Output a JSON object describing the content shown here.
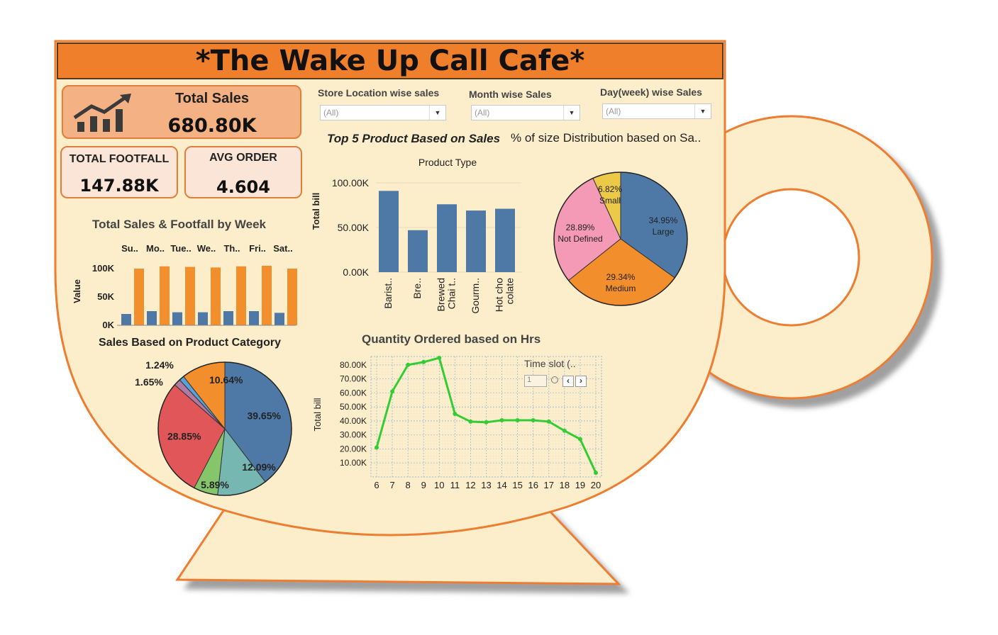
{
  "app_title": "*The Wake Up Call Cafe*",
  "kpis": {
    "total_sales": {
      "label": "Total Sales",
      "value": "680.80K"
    },
    "total_footfall": {
      "label": "TOTAL FOOTFALL",
      "value": "147.88K"
    },
    "avg_order": {
      "label": "AVG ORDER",
      "value": "4.604"
    }
  },
  "filters": [
    {
      "label": "Store Location wise sales",
      "value": "(All)"
    },
    {
      "label": "Month wise Sales",
      "value": "(All)"
    },
    {
      "label": "Day(week) wise Sales",
      "value": "(All)"
    }
  ],
  "icons": {
    "kpi_icon": "bar-chart-trend-icon",
    "dropdown": "chevron-down-icon"
  },
  "colors": {
    "orange": "#f28e2b",
    "blue": "#4e79a7",
    "title_bg": "#f07f2c",
    "cream": "#fdeecb",
    "line_green": "#33cc33"
  },
  "chart_data": [
    {
      "id": "weekly",
      "type": "bar",
      "title": "Total Sales & Footfall by Week",
      "ylabel": "Value",
      "categories": [
        "Su..",
        "Mo..",
        "Tue..",
        "We..",
        "Th..",
        "Fri..",
        "Sat.."
      ],
      "yticks": [
        "100K",
        "50K",
        "0K"
      ],
      "ylim": [
        0,
        120000
      ],
      "series": [
        {
          "values": [
            20000,
            25000,
            23000,
            23000,
            25000,
            25000,
            22000
          ],
          "color": "#4e79a7"
        },
        {
          "values": [
            100000,
            104000,
            103000,
            102000,
            104000,
            105000,
            100000
          ],
          "color": "#f28e2b"
        }
      ]
    },
    {
      "id": "category",
      "type": "pie",
      "title": "Sales Based on Product Category",
      "slices": [
        {
          "value": 39.65,
          "label": "39.65%",
          "color": "#4e79a7"
        },
        {
          "value": 12.09,
          "label": "12.09%",
          "color": "#76b7b2"
        },
        {
          "value": 5.89,
          "label": "5.89%",
          "color": "#86c66b"
        },
        {
          "value": 28.85,
          "label": "28.85%",
          "color": "#e15759"
        },
        {
          "value": 1.65,
          "label": "1.65%",
          "color": "#b07aa1"
        },
        {
          "value": 1.24,
          "label": "1.24%",
          "color": "#59a1d8"
        },
        {
          "value": 10.64,
          "label": "10.64%",
          "color": "#f28e2b"
        }
      ]
    },
    {
      "id": "top5",
      "type": "bar",
      "title": "Top 5 Product Based on Sales",
      "header": "Product Type",
      "ylabel": "Total bill",
      "categories": [
        "Barist..",
        "Bre..",
        "Brewed Chai t..",
        "Gourm..",
        "Hot chocolate"
      ],
      "tick_lines": [
        [
          "Barist.."
        ],
        [
          "Bre.."
        ],
        [
          "Brewed",
          "Chai t.."
        ],
        [
          "Gourm.."
        ],
        [
          "Hot cho",
          "colate"
        ]
      ],
      "values": [
        91000,
        47000,
        76000,
        69000,
        71000
      ],
      "yticks": [
        "100.00K",
        "50.00K",
        "0.00K"
      ],
      "ylim": [
        0,
        100000
      ],
      "color": "#4e79a7"
    },
    {
      "id": "size",
      "type": "pie",
      "title": "% of size Distribution based on Sa..",
      "slices": [
        {
          "value": 34.95,
          "pct": "34.95%",
          "name": "Large",
          "color": "#4e79a7"
        },
        {
          "value": 29.34,
          "pct": "29.34%",
          "name": "Medium",
          "color": "#f28e2b"
        },
        {
          "value": 28.89,
          "pct": "28.89%",
          "name": "Not Defined",
          "color": "#f59ab6"
        },
        {
          "value": 6.82,
          "pct": "6.82%",
          "name": "Small",
          "color": "#edc948"
        }
      ]
    },
    {
      "id": "hourly",
      "type": "line",
      "title": "Quantity Ordered based on Hrs",
      "ylabel": "Total bill",
      "x": [
        6,
        7,
        8,
        9,
        10,
        11,
        12,
        13,
        14,
        15,
        16,
        17,
        18,
        19,
        20
      ],
      "values": [
        21000,
        61000,
        80000,
        82000,
        85000,
        45000,
        39500,
        39000,
        40500,
        40500,
        40500,
        39500,
        33000,
        27000,
        3000
      ],
      "yticks": [
        "80.00K",
        "70.00K",
        "60.00K",
        "50.00K",
        "40.00K",
        "30.00K",
        "20.00K",
        "10.00K"
      ],
      "ylim": [
        0,
        86000
      ],
      "color": "#33cc33",
      "control_label": "Time slot (..",
      "control_value": "1"
    }
  ]
}
